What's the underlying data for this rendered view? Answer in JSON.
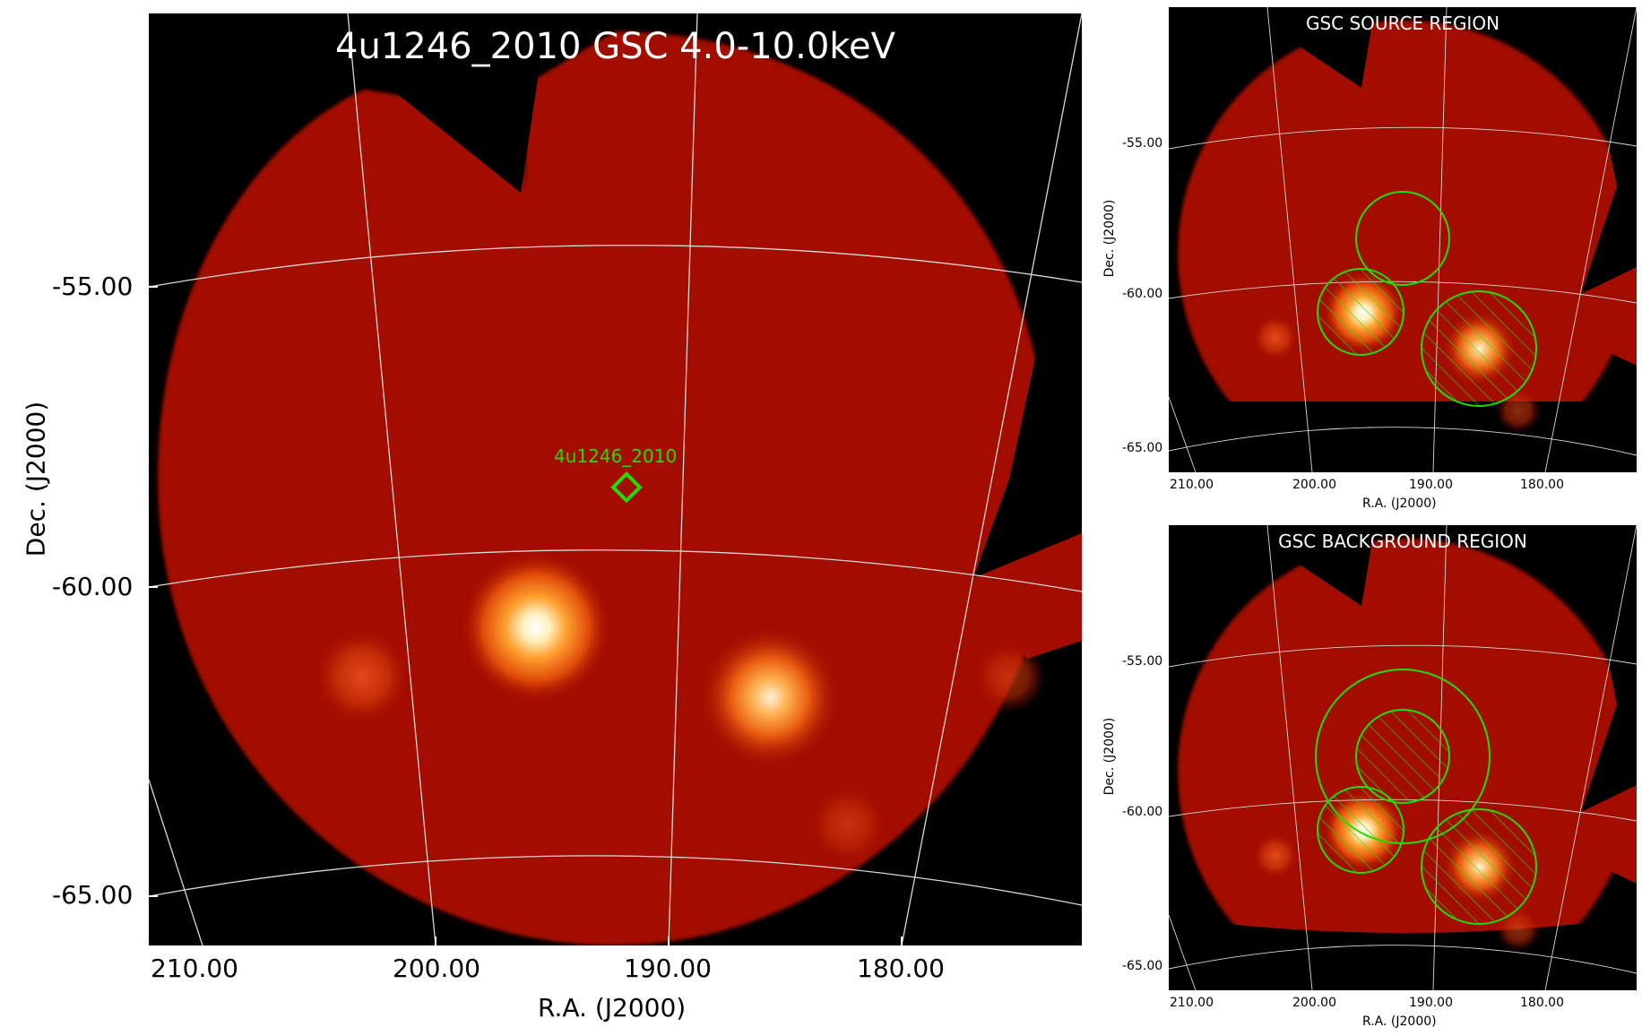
{
  "main_panel": {
    "title": "4u1246_2010 GSC 4.0-10.0keV",
    "source_label": "4u1246_2010",
    "xlabel": "R.A. (J2000)",
    "ylabel": "Dec. (J2000)",
    "x_ticks": [
      "210.00",
      "200.00",
      "190.00",
      "180.00"
    ],
    "y_ticks": [
      "-55.00",
      "-60.00",
      "-65.00"
    ],
    "marker_color": "#22dd00"
  },
  "source_panel": {
    "title": "GSC SOURCE REGION",
    "xlabel": "R.A. (J2000)",
    "ylabel": "Dec. (J2000)",
    "x_ticks": [
      "210.00",
      "200.00",
      "190.00",
      "180.00"
    ],
    "y_ticks": [
      "-55.00",
      "-60.00",
      "-65.00"
    ]
  },
  "background_panel": {
    "title": "GSC BACKGROUND REGION",
    "xlabel": "R.A. (J2000)",
    "ylabel": "Dec. (J2000)",
    "x_ticks": [
      "210.00",
      "200.00",
      "190.00",
      "180.00"
    ],
    "y_ticks": [
      "-55.00",
      "-60.00",
      "-65.00"
    ]
  },
  "colors": {
    "image_red": "#a30c00",
    "region_green": "#22dd00",
    "grid": "#d8d8d8"
  }
}
